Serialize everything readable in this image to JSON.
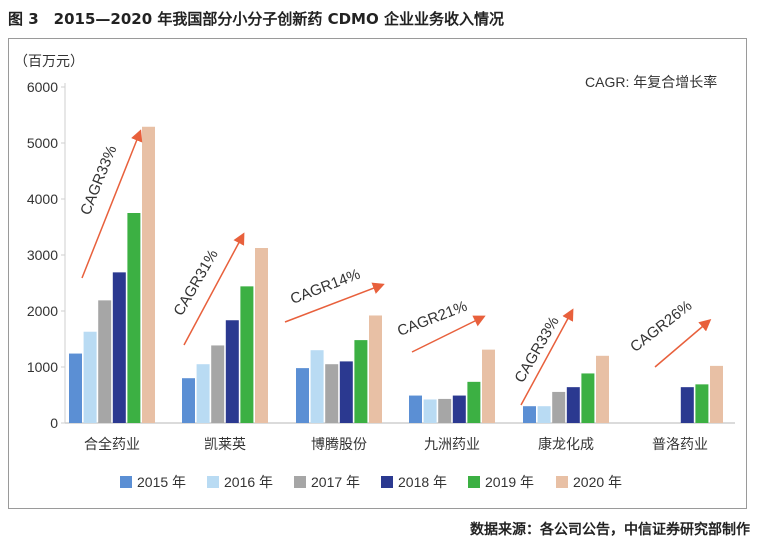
{
  "title": "图 3　2015—2020 年我国部分小分子创新药 CDMO 企业业务收入情况",
  "source": "数据来源：各公司公告，中信证券研究部制作",
  "chart_data": {
    "type": "bar",
    "ylabel": "（百万元）",
    "ylim": [
      0,
      6000
    ],
    "yticks": [
      0,
      1000,
      2000,
      3000,
      4000,
      5000,
      6000
    ],
    "grid": false,
    "legend_position": "bottom",
    "note": "CAGR: 年复合增长率",
    "categories": [
      "合全药业",
      "凯莱英",
      "博腾股份",
      "九洲药业",
      "康龙化成",
      "普洛药业"
    ],
    "series": [
      {
        "name": "2015 年",
        "color": "#5b8fd4",
        "values": [
          1240,
          800,
          980,
          490,
          300,
          null
        ]
      },
      {
        "name": "2016 年",
        "color": "#b9dbf3",
        "values": [
          1630,
          1050,
          1300,
          420,
          300,
          null
        ]
      },
      {
        "name": "2017 年",
        "color": "#a6a6a6",
        "values": [
          2190,
          1385,
          1050,
          430,
          555,
          null
        ]
      },
      {
        "name": "2018 年",
        "color": "#2b3990",
        "values": [
          2690,
          1835,
          1100,
          490,
          640,
          640
        ]
      },
      {
        "name": "2019 年",
        "color": "#3cb043",
        "values": [
          3750,
          2440,
          1480,
          735,
          885,
          690
        ]
      },
      {
        "name": "2020 年",
        "color": "#e8c0a5",
        "values": [
          5290,
          3125,
          1920,
          1310,
          1200,
          1020
        ]
      }
    ],
    "annotations": [
      "CAGR33%",
      "CAGR31%",
      "CAGR14%",
      "CAGR21%",
      "CAGR33%",
      "CAGR26%"
    ],
    "arrow_color": "#e8603c"
  }
}
